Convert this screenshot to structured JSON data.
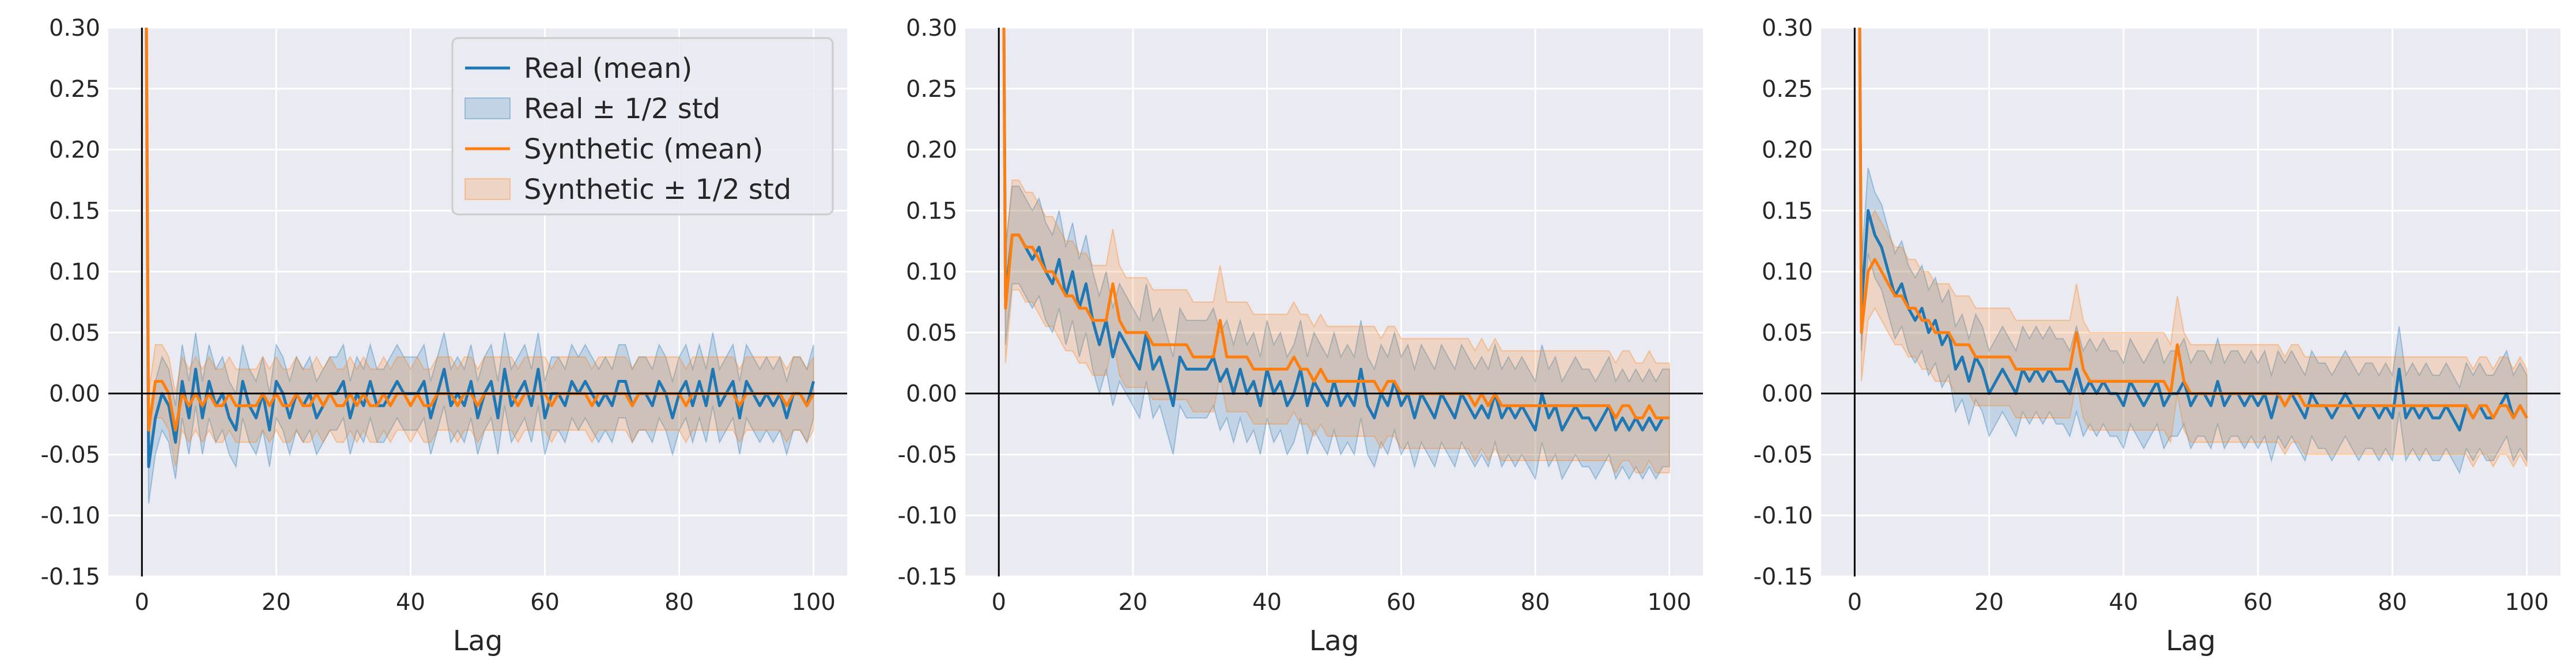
{
  "colors": {
    "background": "#eaeaf2",
    "grid": "#ffffff",
    "real": "#1f77b4",
    "synthetic": "#ff7f0e",
    "zero_line": "#000000"
  },
  "legend": {
    "placement": "top-right",
    "panel": 0,
    "entries": [
      {
        "label": "Real (mean)",
        "kind": "line",
        "series": "real"
      },
      {
        "label": "Real ± 1/2 std",
        "kind": "band",
        "series": "real"
      },
      {
        "label": "Synthetic (mean)",
        "kind": "line",
        "series": "synthetic"
      },
      {
        "label": "Synthetic ± 1/2 std",
        "kind": "band",
        "series": "synthetic"
      }
    ]
  },
  "chart_data": [
    {
      "type": "line",
      "xlabel": "Lag",
      "ylabel": "",
      "xlim": [
        -5,
        105
      ],
      "ylim": [
        -0.15,
        0.3
      ],
      "xticks": [
        0,
        20,
        40,
        60,
        80,
        100
      ],
      "yticks": [
        -0.15,
        -0.1,
        -0.05,
        0.0,
        0.05,
        0.1,
        0.15,
        0.2,
        0.25,
        0.3
      ],
      "grid": true,
      "reference_lines": {
        "x": 0,
        "y": 0
      },
      "series": [
        {
          "name": "Real (mean)",
          "band_name": "Real ± 1/2 std",
          "x_start": 0,
          "mean": [
            1.0,
            -0.06,
            -0.02,
            0.0,
            -0.01,
            -0.04,
            0.01,
            -0.02,
            0.02,
            -0.02,
            0.01,
            -0.01,
            0.0,
            -0.02,
            -0.03,
            0.01,
            -0.01,
            -0.02,
            0.0,
            -0.03,
            0.01,
            0.0,
            -0.02,
            0.0,
            -0.01,
            0.0,
            -0.02,
            -0.01,
            0.0,
            0.0,
            0.01,
            -0.02,
            0.0,
            -0.01,
            0.01,
            -0.01,
            -0.01,
            0.0,
            0.01,
            0.0,
            0.0,
            0.0,
            0.01,
            -0.02,
            0.0,
            0.02,
            -0.01,
            0.0,
            -0.01,
            0.01,
            -0.02,
            0.0,
            0.01,
            -0.02,
            0.02,
            -0.01,
            0.0,
            0.01,
            -0.01,
            0.02,
            -0.02,
            0.0,
            0.0,
            -0.01,
            0.01,
            0.0,
            0.01,
            0.0,
            -0.01,
            0.0,
            -0.01,
            0.01,
            0.01,
            -0.01,
            0.0,
            0.0,
            -0.01,
            0.01,
            0.0,
            -0.02,
            0.0,
            0.01,
            -0.01,
            0.01,
            -0.01,
            0.02,
            -0.01,
            0.0,
            0.01,
            -0.02,
            0.01,
            0.0,
            -0.01,
            0.0,
            -0.01,
            0.0,
            -0.02,
            0.0,
            0.0,
            -0.01,
            0.01
          ],
          "half_std": 0.03
        },
        {
          "name": "Synthetic (mean)",
          "band_name": "Synthetic ± 1/2 std",
          "x_start": 0,
          "mean": [
            1.0,
            -0.03,
            0.01,
            0.01,
            0.0,
            -0.03,
            0.0,
            -0.01,
            0.0,
            -0.01,
            0.0,
            -0.01,
            -0.01,
            0.0,
            -0.01,
            -0.01,
            -0.01,
            -0.01,
            0.0,
            -0.01,
            0.0,
            -0.01,
            -0.01,
            0.0,
            -0.01,
            -0.01,
            0.0,
            -0.01,
            0.0,
            -0.01,
            -0.01,
            0.0,
            -0.01,
            0.0,
            -0.01,
            -0.01,
            0.0,
            -0.01,
            0.0,
            0.0,
            -0.01,
            0.0,
            -0.01,
            -0.01,
            0.0,
            0.0,
            0.0,
            -0.01,
            0.0,
            0.0,
            -0.01,
            0.0,
            0.0,
            0.0,
            0.0,
            0.0,
            -0.01,
            0.0,
            0.0,
            0.0,
            0.0,
            -0.01,
            0.0,
            0.0,
            0.0,
            0.0,
            0.0,
            -0.01,
            0.0,
            0.0,
            0.0,
            0.0,
            0.0,
            -0.01,
            0.0,
            0.0,
            0.0,
            0.0,
            0.0,
            0.0,
            0.0,
            -0.01,
            0.0,
            0.0,
            0.0,
            0.0,
            0.0,
            0.0,
            0.0,
            -0.01,
            0.0,
            0.0,
            0.0,
            0.0,
            0.0,
            0.0,
            -0.01,
            0.0,
            0.0,
            -0.01,
            0.0
          ],
          "half_std": 0.03
        }
      ]
    },
    {
      "type": "line",
      "xlabel": "Lag",
      "ylabel": "",
      "xlim": [
        -5,
        105
      ],
      "ylim": [
        -0.15,
        0.3
      ],
      "xticks": [
        0,
        20,
        40,
        60,
        80,
        100
      ],
      "yticks": [
        -0.15,
        -0.1,
        -0.05,
        0.0,
        0.05,
        0.1,
        0.15,
        0.2,
        0.25,
        0.3
      ],
      "grid": true,
      "reference_lines": {
        "x": 0,
        "y": 0
      },
      "series": [
        {
          "name": "Real (mean)",
          "band_name": "Real ± 1/2 std",
          "x_start": 0,
          "mean": [
            1.0,
            0.08,
            0.13,
            0.13,
            0.12,
            0.11,
            0.12,
            0.1,
            0.09,
            0.11,
            0.08,
            0.1,
            0.07,
            0.09,
            0.06,
            0.04,
            0.06,
            0.03,
            0.05,
            0.04,
            0.03,
            0.02,
            0.05,
            0.02,
            0.03,
            0.01,
            -0.01,
            0.03,
            0.02,
            0.02,
            0.02,
            0.02,
            0.03,
            0.01,
            0.02,
            0.0,
            0.02,
            0.0,
            0.01,
            -0.01,
            0.02,
            0.0,
            0.01,
            -0.01,
            0.0,
            0.02,
            -0.01,
            0.01,
            0.0,
            -0.01,
            0.01,
            -0.01,
            0.0,
            -0.01,
            0.02,
            -0.01,
            -0.02,
            0.0,
            -0.01,
            0.01,
            -0.01,
            0.0,
            -0.02,
            0.0,
            -0.01,
            -0.02,
            0.0,
            -0.01,
            -0.02,
            0.0,
            -0.01,
            -0.02,
            -0.01,
            -0.02,
            0.0,
            -0.02,
            -0.01,
            -0.02,
            -0.01,
            -0.02,
            -0.03,
            0.0,
            -0.02,
            -0.01,
            -0.03,
            -0.02,
            -0.01,
            -0.02,
            -0.02,
            -0.03,
            -0.02,
            -0.01,
            -0.03,
            -0.02,
            -0.03,
            -0.02,
            -0.03,
            -0.02,
            -0.03,
            -0.02,
            -0.02
          ],
          "half_std": 0.04
        },
        {
          "name": "Synthetic (mean)",
          "band_name": "Synthetic ± 1/2 std",
          "x_start": 0,
          "mean": [
            1.0,
            0.07,
            0.13,
            0.13,
            0.12,
            0.12,
            0.11,
            0.1,
            0.1,
            0.09,
            0.08,
            0.08,
            0.07,
            0.07,
            0.06,
            0.06,
            0.06,
            0.09,
            0.06,
            0.05,
            0.05,
            0.05,
            0.05,
            0.04,
            0.04,
            0.04,
            0.04,
            0.04,
            0.04,
            0.03,
            0.03,
            0.03,
            0.03,
            0.06,
            0.03,
            0.03,
            0.03,
            0.03,
            0.02,
            0.02,
            0.02,
            0.02,
            0.02,
            0.02,
            0.03,
            0.02,
            0.02,
            0.01,
            0.02,
            0.01,
            0.01,
            0.01,
            0.01,
            0.01,
            0.01,
            0.01,
            0.01,
            0.0,
            0.01,
            0.01,
            0.0,
            0.0,
            0.0,
            0.0,
            0.0,
            0.0,
            0.0,
            0.0,
            0.0,
            0.0,
            0.0,
            -0.01,
            0.0,
            -0.01,
            0.0,
            -0.01,
            -0.01,
            -0.01,
            -0.01,
            -0.01,
            -0.01,
            -0.01,
            -0.01,
            -0.01,
            -0.01,
            -0.01,
            -0.01,
            -0.01,
            -0.01,
            -0.01,
            -0.01,
            -0.01,
            -0.02,
            -0.01,
            -0.01,
            -0.02,
            -0.02,
            -0.01,
            -0.02,
            -0.02,
            -0.02
          ],
          "half_std": 0.045
        }
      ]
    },
    {
      "type": "line",
      "xlabel": "Lag",
      "ylabel": "",
      "xlim": [
        -5,
        105
      ],
      "ylim": [
        -0.15,
        0.3
      ],
      "xticks": [
        0,
        20,
        40,
        60,
        80,
        100
      ],
      "yticks": [
        -0.15,
        -0.1,
        -0.05,
        0.0,
        0.05,
        0.1,
        0.15,
        0.2,
        0.25,
        0.3
      ],
      "grid": true,
      "reference_lines": {
        "x": 0,
        "y": 0
      },
      "series": [
        {
          "name": "Real (mean)",
          "band_name": "Real ± 1/2 std",
          "x_start": 0,
          "mean": [
            1.0,
            0.07,
            0.15,
            0.13,
            0.12,
            0.1,
            0.08,
            0.09,
            0.07,
            0.06,
            0.07,
            0.05,
            0.06,
            0.04,
            0.05,
            0.02,
            0.03,
            0.01,
            0.03,
            0.02,
            0.0,
            0.01,
            0.02,
            0.01,
            0.0,
            0.02,
            0.01,
            0.02,
            0.01,
            0.02,
            0.01,
            0.01,
            0.0,
            0.02,
            0.0,
            0.01,
            0.0,
            0.01,
            0.0,
            0.0,
            -0.01,
            0.01,
            0.0,
            -0.01,
            0.0,
            0.01,
            -0.01,
            0.0,
            0.0,
            0.01,
            -0.01,
            0.0,
            0.0,
            -0.01,
            0.01,
            -0.01,
            0.0,
            0.0,
            -0.01,
            0.0,
            -0.01,
            0.0,
            -0.02,
            0.0,
            -0.01,
            0.0,
            -0.01,
            -0.02,
            0.0,
            -0.01,
            -0.01,
            -0.02,
            -0.01,
            0.0,
            -0.01,
            -0.02,
            -0.01,
            -0.01,
            -0.02,
            -0.01,
            -0.02,
            0.02,
            -0.02,
            -0.01,
            -0.02,
            -0.01,
            -0.02,
            -0.02,
            -0.01,
            -0.02,
            -0.03,
            -0.01,
            -0.02,
            -0.01,
            -0.02,
            -0.02,
            -0.01,
            0.0,
            -0.02,
            -0.01,
            -0.02
          ],
          "half_std": 0.035
        },
        {
          "name": "Synthetic (mean)",
          "band_name": "Synthetic ± 1/2 std",
          "x_start": 0,
          "mean": [
            1.0,
            0.05,
            0.1,
            0.11,
            0.1,
            0.09,
            0.08,
            0.08,
            0.07,
            0.07,
            0.06,
            0.06,
            0.05,
            0.05,
            0.05,
            0.04,
            0.04,
            0.04,
            0.03,
            0.03,
            0.03,
            0.03,
            0.03,
            0.03,
            0.02,
            0.02,
            0.02,
            0.02,
            0.02,
            0.02,
            0.02,
            0.02,
            0.02,
            0.05,
            0.02,
            0.01,
            0.01,
            0.01,
            0.01,
            0.01,
            0.01,
            0.01,
            0.01,
            0.01,
            0.01,
            0.01,
            0.01,
            0.0,
            0.04,
            0.01,
            0.0,
            0.0,
            0.0,
            0.0,
            0.0,
            0.0,
            0.0,
            0.0,
            0.0,
            0.0,
            0.0,
            0.0,
            0.0,
            0.0,
            -0.01,
            0.0,
            0.0,
            -0.01,
            -0.01,
            -0.01,
            -0.01,
            -0.01,
            -0.01,
            -0.01,
            -0.01,
            -0.01,
            -0.01,
            -0.01,
            -0.01,
            -0.01,
            -0.01,
            -0.01,
            -0.01,
            -0.01,
            -0.01,
            -0.01,
            -0.01,
            -0.01,
            -0.01,
            -0.01,
            -0.01,
            -0.01,
            -0.02,
            -0.01,
            -0.01,
            -0.02,
            -0.01,
            -0.01,
            -0.02,
            -0.01,
            -0.02
          ],
          "half_std": 0.04
        }
      ]
    }
  ]
}
